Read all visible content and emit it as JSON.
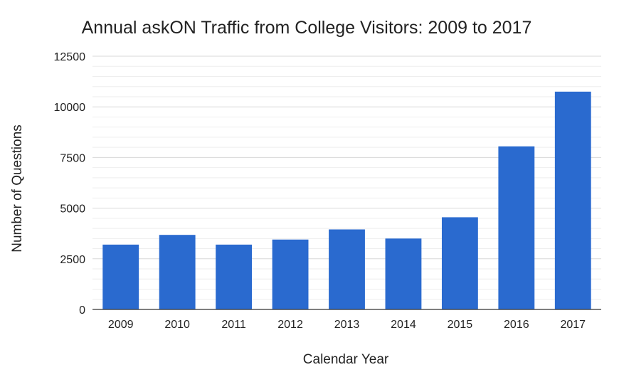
{
  "chart_data": {
    "type": "bar",
    "title": "Annual askON Traffic from College Visitors: 2009 to 2017",
    "xlabel": "Calendar Year",
    "ylabel": "Number of Questions",
    "categories": [
      "2009",
      "2010",
      "2011",
      "2012",
      "2013",
      "2014",
      "2015",
      "2016",
      "2017"
    ],
    "series": [
      {
        "values": [
          3200,
          3680,
          3200,
          3450,
          3950,
          3500,
          4550,
          8050,
          10750
        ],
        "color": "#2a6acf"
      }
    ],
    "ylim": [
      0,
      12500
    ],
    "yticks": [
      "0",
      "2500",
      "5000",
      "7500",
      "10000",
      "12500"
    ],
    "grid": true,
    "legend": "none"
  }
}
